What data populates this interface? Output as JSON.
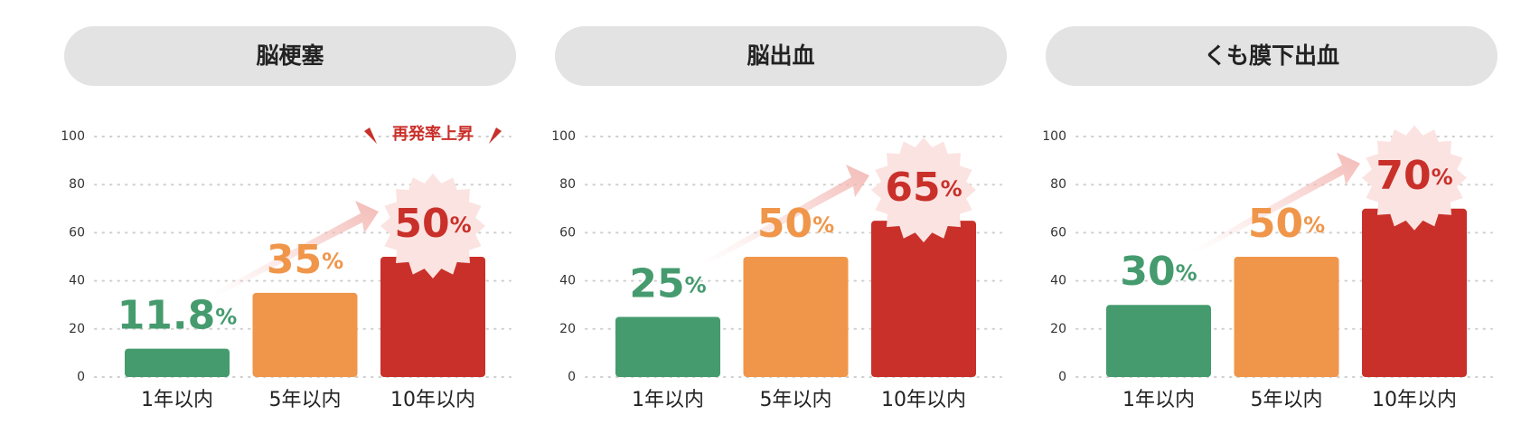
{
  "chart_data": [
    {
      "type": "bar",
      "title": "脳梗塞",
      "categories": [
        "1年以内",
        "5年以内",
        "10年以内"
      ],
      "values": [
        11.8,
        35,
        50
      ],
      "value_labels": [
        "11.8%",
        "35%",
        "50%"
      ],
      "colors": [
        "#459b6e",
        "#f0964a",
        "#c9302a"
      ],
      "ylim": [
        0,
        100
      ],
      "yticks": [
        0,
        20,
        40,
        60,
        80,
        100
      ],
      "grid": true,
      "annotation": "再発率上昇"
    },
    {
      "type": "bar",
      "title": "脳出血",
      "categories": [
        "1年以内",
        "5年以内",
        "10年以内"
      ],
      "values": [
        25,
        50,
        65
      ],
      "value_labels": [
        "25%",
        "50%",
        "65%"
      ],
      "colors": [
        "#459b6e",
        "#f0964a",
        "#c9302a"
      ],
      "ylim": [
        0,
        100
      ],
      "yticks": [
        0,
        20,
        40,
        60,
        80,
        100
      ],
      "grid": true
    },
    {
      "type": "bar",
      "title": "くも膜下出血",
      "categories": [
        "1年以内",
        "5年以内",
        "10年以内"
      ],
      "values": [
        30,
        50,
        70
      ],
      "value_labels": [
        "30%",
        "50%",
        "70%"
      ],
      "colors": [
        "#459b6e",
        "#f0964a",
        "#c9302a"
      ],
      "ylim": [
        0,
        100
      ],
      "yticks": [
        0,
        20,
        40,
        60,
        80,
        100
      ],
      "grid": true
    }
  ]
}
